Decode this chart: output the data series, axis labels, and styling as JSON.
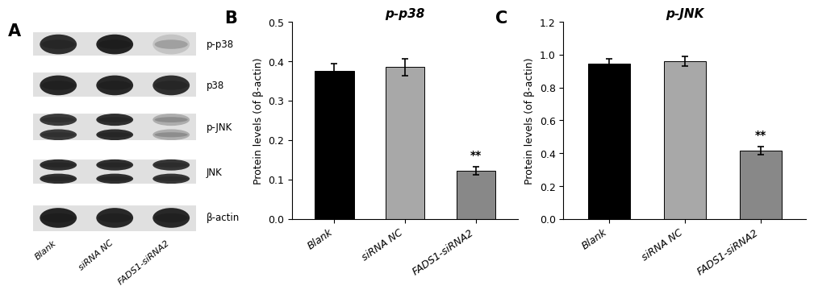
{
  "panel_B": {
    "title": "p-p38",
    "categories": [
      "Blank",
      "siRNA NC",
      "FADS1-siRNA2"
    ],
    "values": [
      0.375,
      0.385,
      0.123
    ],
    "errors": [
      0.018,
      0.022,
      0.01
    ],
    "bar_colors": [
      "#000000",
      "#a8a8a8",
      "#888888"
    ],
    "ylim": [
      0,
      0.5
    ],
    "yticks": [
      0.0,
      0.1,
      0.2,
      0.3,
      0.4,
      0.5
    ],
    "ylabel": "Protein levels (of β-actin)",
    "sig_idx": 2,
    "sig_label": "**"
  },
  "panel_C": {
    "title": "p-JNK",
    "categories": [
      "Blank",
      "siRNA NC",
      "FADS1-siRNA2"
    ],
    "values": [
      0.945,
      0.96,
      0.415
    ],
    "errors": [
      0.03,
      0.03,
      0.025
    ],
    "bar_colors": [
      "#000000",
      "#a8a8a8",
      "#888888"
    ],
    "ylim": [
      0,
      1.2
    ],
    "yticks": [
      0.0,
      0.2,
      0.4,
      0.6,
      0.8,
      1.0,
      1.2
    ],
    "ylabel": "Protein levels (of β-actin)",
    "sig_idx": 2,
    "sig_label": "**"
  },
  "panel_A_label": "A",
  "panel_B_label": "B",
  "panel_C_label": "C",
  "background_color": "#ffffff",
  "tick_fontsize": 9,
  "label_fontsize": 9,
  "title_fontsize": 11,
  "panel_label_fontsize": 15,
  "xticklabel_rotation": 35,
  "bar_width": 0.55,
  "western_blot_labels": [
    "p-p38",
    "p38",
    "p-JNK",
    "JNK",
    "β-actin"
  ],
  "western_blot_xlabels": [
    "Blank",
    "siRNA NC",
    "FADS1-siRNA2"
  ],
  "wb_band_intensities": {
    "p-p38": [
      0.85,
      0.9,
      0.2
    ],
    "p38": [
      0.88,
      0.88,
      0.85
    ],
    "p-JNK": [
      0.8,
      0.85,
      0.3
    ],
    "JNK": [
      0.85,
      0.85,
      0.82
    ],
    "b-actin": [
      0.9,
      0.88,
      0.88
    ]
  },
  "wb_double_bands": [
    "p-JNK",
    "JNK"
  ],
  "wb_row_bg_color": "#d8d8d8",
  "wb_band_color_dark": "#111111",
  "wb_band_color_light": "#cccccc"
}
